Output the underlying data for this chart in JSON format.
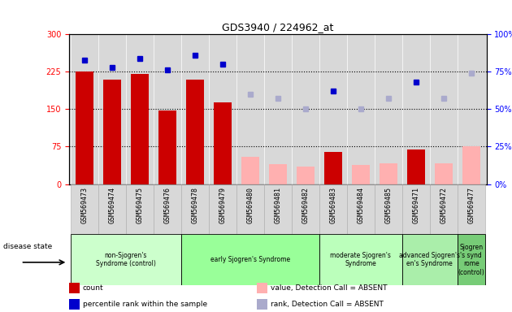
{
  "title": "GDS3940 / 224962_at",
  "samples": [
    "GSM569473",
    "GSM569474",
    "GSM569475",
    "GSM569476",
    "GSM569478",
    "GSM569479",
    "GSM569480",
    "GSM569481",
    "GSM569482",
    "GSM569483",
    "GSM569484",
    "GSM569485",
    "GSM569471",
    "GSM569472",
    "GSM569477"
  ],
  "count_present": [
    225,
    210,
    220,
    148,
    210,
    163,
    null,
    null,
    null,
    65,
    null,
    null,
    70,
    null,
    null
  ],
  "count_absent": [
    null,
    null,
    null,
    null,
    null,
    null,
    55,
    40,
    35,
    null,
    38,
    42,
    null,
    42,
    75
  ],
  "rank_present": [
    83,
    78,
    84,
    76,
    86,
    80,
    null,
    null,
    null,
    62,
    null,
    null,
    68,
    null,
    null
  ],
  "rank_absent": [
    null,
    null,
    null,
    null,
    null,
    null,
    60,
    57,
    50,
    null,
    50,
    57,
    null,
    57,
    74
  ],
  "disease_groups": [
    {
      "label": "non-Sjogren's\nSyndrome (control)",
      "start": 0,
      "end": 3,
      "color": "#ccffcc"
    },
    {
      "label": "early Sjogren's Syndrome",
      "start": 4,
      "end": 8,
      "color": "#99ff99"
    },
    {
      "label": "moderate Sjogren's\nSyndrome",
      "start": 9,
      "end": 11,
      "color": "#bbffbb"
    },
    {
      "label": "advanced Sjogren's\nen's Syndrome",
      "start": 12,
      "end": 13,
      "color": "#aaeeaa"
    },
    {
      "label": "Sjogren\n's synd\nrome\n(control)",
      "start": 14,
      "end": 14,
      "color": "#77cc77"
    }
  ],
  "ylim_left": [
    0,
    300
  ],
  "ylim_right": [
    0,
    100
  ],
  "yticks_left": [
    0,
    75,
    150,
    225,
    300
  ],
  "ytick_labels_left": [
    "0",
    "75",
    "150",
    "225",
    "300"
  ],
  "yticks_right": [
    0,
    25,
    50,
    75,
    100
  ],
  "ytick_labels_right": [
    "0%",
    "25%",
    "50%",
    "75%",
    "100%"
  ],
  "hlines": [
    75,
    150,
    225
  ],
  "bar_color_present": "#cc0000",
  "bar_color_absent": "#ffb0b0",
  "dot_color_present": "#0000cc",
  "dot_color_absent": "#aaaacc",
  "bg_color": "#d8d8d8",
  "plot_bg": "#ffffff"
}
